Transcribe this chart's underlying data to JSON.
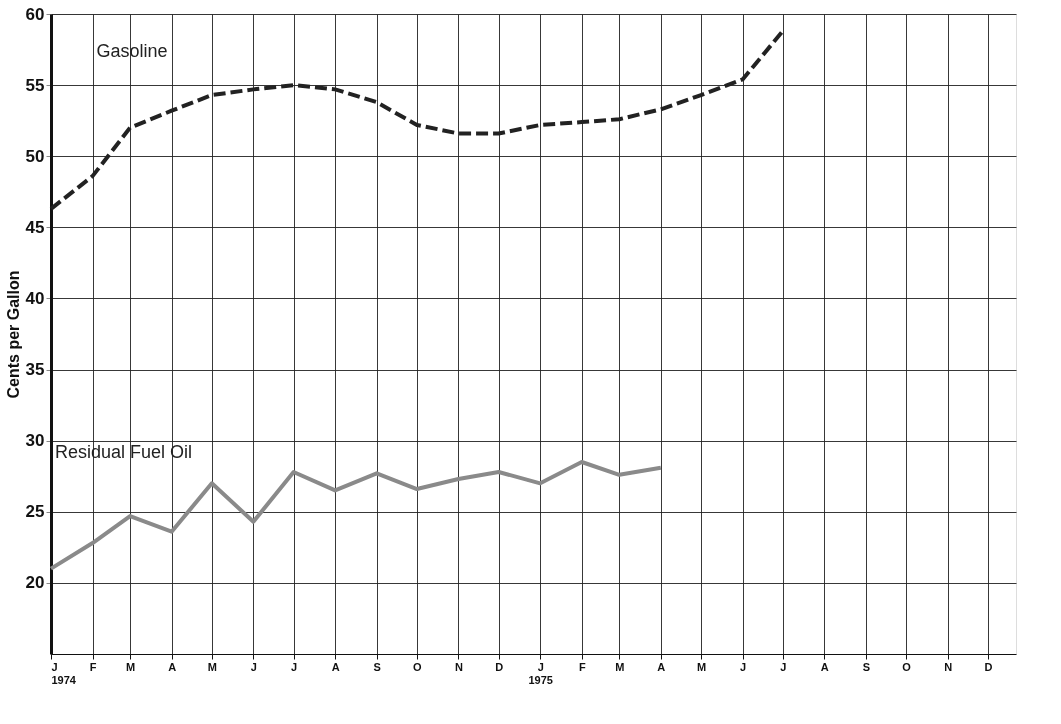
{
  "chart_data": {
    "type": "line",
    "ylabel": "Cents per Gallon",
    "x": [
      "1974-01",
      "1974-02",
      "1974-03",
      "1974-04",
      "1974-05",
      "1974-06",
      "1974-07",
      "1974-08",
      "1974-09",
      "1974-10",
      "1974-11",
      "1974-12",
      "1975-01",
      "1975-02",
      "1975-03",
      "1975-04",
      "1975-05",
      "1975-06",
      "1975-07"
    ],
    "series": [
      {
        "name": "Gasoline",
        "color": "#222222",
        "line_style": "dashed",
        "values": [
          46.3,
          48.6,
          52,
          53.2,
          54.3,
          54.7,
          55,
          54.7,
          53.8,
          52.2,
          51.6,
          51.6,
          52.2,
          52.4,
          52.6,
          53.3,
          54.3,
          55.4,
          58.8
        ]
      },
      {
        "name": "Residual Fuel Oil",
        "color": "#8a8a8a",
        "line_style": "solid",
        "values": [
          21,
          22.8,
          24.7,
          23.6,
          27,
          24.3,
          27.8,
          26.5,
          27.7,
          26.6,
          27.3,
          27.8,
          27,
          28.5,
          27.6,
          28.1,
          null,
          null,
          null
        ]
      }
    ],
    "xlim": [
      "1974-01",
      "1975-12-22"
    ],
    "xticks": [
      {
        "value": "1974-01",
        "label": "J\n1974"
      },
      {
        "value": "1974-02",
        "label": "F"
      },
      {
        "value": "1974-03",
        "label": "M"
      },
      {
        "value": "1974-04",
        "label": "A"
      },
      {
        "value": "1974-05",
        "label": "M"
      },
      {
        "value": "1974-06",
        "label": "J"
      },
      {
        "value": "1974-07",
        "label": "J"
      },
      {
        "value": "1974-08",
        "label": "A"
      },
      {
        "value": "1974-09",
        "label": "S"
      },
      {
        "value": "1974-10",
        "label": "O"
      },
      {
        "value": "1974-11",
        "label": "N"
      },
      {
        "value": "1974-12",
        "label": "D"
      },
      {
        "value": "1975-01",
        "label": "J\n1975"
      },
      {
        "value": "1975-02",
        "label": "F"
      },
      {
        "value": "1975-03",
        "label": "M"
      },
      {
        "value": "1975-04",
        "label": "A"
      },
      {
        "value": "1975-05",
        "label": "M"
      },
      {
        "value": "1975-06",
        "label": "J"
      },
      {
        "value": "1975-07",
        "label": "J"
      },
      {
        "value": "1975-08",
        "label": "A"
      },
      {
        "value": "1975-09",
        "label": "S"
      },
      {
        "value": "1975-10",
        "label": "O"
      },
      {
        "value": "1975-11",
        "label": "N"
      },
      {
        "value": "1975-12",
        "label": "D"
      }
    ],
    "ylim": [
      15,
      60
    ],
    "yticks": [
      20,
      25,
      30,
      35,
      40,
      45,
      50,
      55,
      60
    ],
    "grid": true,
    "marker": "none"
  }
}
